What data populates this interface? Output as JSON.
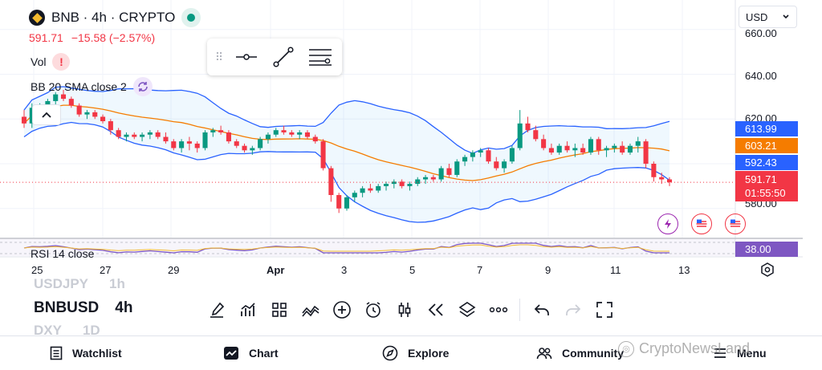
{
  "header": {
    "title": "BNB · 4h · CRYPTO",
    "last_price": "591.71",
    "change": "−15.58 (−2.57%)"
  },
  "indicators": {
    "volume_label": "Vol",
    "bb_label": "BB 20 SMA close 2",
    "rsi_label": "RSI 14 close"
  },
  "currency_selector": {
    "value": "USD"
  },
  "price_axis": {
    "labels": [
      "660.00",
      "640.00",
      "620.00",
      "580.00"
    ]
  },
  "price_tags": {
    "bb_upper": {
      "value": "613.99",
      "color": "#2962ff"
    },
    "bb_basis": {
      "value": "603.21",
      "color": "#f57c00"
    },
    "bb_lower": {
      "value": "592.43",
      "color": "#2962ff"
    },
    "last": {
      "value": "591.71",
      "countdown": "01:55:50",
      "color": "#f23645"
    },
    "rsi": {
      "value": "38.00",
      "color": "#7e57c2"
    }
  },
  "time_axis": {
    "labels": [
      "25",
      "27",
      "29",
      "Apr",
      "3",
      "5",
      "7",
      "9",
      "11",
      "13"
    ]
  },
  "chart_data": {
    "type": "candlestick",
    "symbol": "BNB",
    "interval": "4h",
    "y_range": [
      567,
      666
    ],
    "x_labels": [
      "25",
      "27",
      "29",
      "Apr",
      "3",
      "5",
      "7",
      "9",
      "11",
      "13"
    ],
    "candles_ohlc": [
      [
        621,
        624,
        616,
        618
      ],
      [
        618,
        627,
        616,
        625
      ],
      [
        625,
        627,
        623,
        626
      ],
      [
        626,
        629,
        624,
        628
      ],
      [
        628,
        632,
        626,
        631
      ],
      [
        631,
        633,
        628,
        629
      ],
      [
        629,
        630,
        625,
        626
      ],
      [
        626,
        627,
        621,
        622
      ],
      [
        622,
        624,
        620,
        623
      ],
      [
        623,
        624,
        620,
        621
      ],
      [
        621,
        622,
        618,
        619
      ],
      [
        619,
        620,
        613,
        615
      ],
      [
        615,
        616,
        611,
        612
      ],
      [
        612,
        614,
        610,
        613
      ],
      [
        613,
        614,
        611,
        612
      ],
      [
        612,
        614,
        610,
        613
      ],
      [
        613,
        615,
        611,
        614
      ],
      [
        614,
        615,
        611,
        612
      ],
      [
        612,
        614,
        609,
        610
      ],
      [
        610,
        611,
        606,
        607
      ],
      [
        607,
        611,
        605,
        610
      ],
      [
        610,
        612,
        606,
        609
      ],
      [
        609,
        610,
        605,
        607
      ],
      [
        607,
        615,
        606,
        614
      ],
      [
        614,
        616,
        612,
        615
      ],
      [
        615,
        617,
        613,
        614
      ],
      [
        614,
        615,
        609,
        610
      ],
      [
        610,
        611,
        607,
        608
      ],
      [
        608,
        609,
        605,
        606
      ],
      [
        606,
        608,
        604,
        607
      ],
      [
        607,
        612,
        606,
        611
      ],
      [
        611,
        614,
        609,
        613
      ],
      [
        613,
        616,
        612,
        615
      ],
      [
        615,
        617,
        613,
        614
      ],
      [
        614,
        615,
        612,
        613
      ],
      [
        613,
        615,
        611,
        614
      ],
      [
        614,
        615,
        611,
        612
      ],
      [
        612,
        613,
        609,
        610
      ],
      [
        610,
        611,
        597,
        598
      ],
      [
        598,
        599,
        583,
        586
      ],
      [
        586,
        587,
        578,
        580
      ],
      [
        580,
        586,
        579,
        585
      ],
      [
        585,
        588,
        583,
        587
      ],
      [
        587,
        590,
        585,
        589
      ],
      [
        589,
        591,
        587,
        588
      ],
      [
        588,
        591,
        587,
        590
      ],
      [
        590,
        592,
        588,
        591
      ],
      [
        591,
        593,
        589,
        592
      ],
      [
        592,
        593,
        589,
        590
      ],
      [
        590,
        592,
        588,
        591
      ],
      [
        591,
        594,
        590,
        593
      ],
      [
        593,
        595,
        591,
        594
      ],
      [
        594,
        595,
        592,
        593
      ],
      [
        593,
        599,
        592,
        598
      ],
      [
        598,
        600,
        594,
        595
      ],
      [
        595,
        602,
        594,
        601
      ],
      [
        601,
        604,
        599,
        603
      ],
      [
        603,
        606,
        601,
        605
      ],
      [
        605,
        607,
        603,
        606
      ],
      [
        606,
        607,
        600,
        601
      ],
      [
        601,
        603,
        597,
        598
      ],
      [
        598,
        602,
        596,
        601
      ],
      [
        601,
        608,
        600,
        607
      ],
      [
        607,
        624,
        606,
        618
      ],
      [
        618,
        621,
        614,
        615
      ],
      [
        615,
        617,
        610,
        611
      ],
      [
        611,
        613,
        606,
        607
      ],
      [
        607,
        609,
        604,
        605
      ],
      [
        605,
        609,
        604,
        608
      ],
      [
        608,
        610,
        605,
        606
      ],
      [
        606,
        609,
        603,
        607
      ],
      [
        607,
        609,
        604,
        605
      ],
      [
        605,
        612,
        604,
        611
      ],
      [
        611,
        612,
        604,
        606
      ],
      [
        606,
        608,
        603,
        607
      ],
      [
        607,
        609,
        605,
        608
      ],
      [
        608,
        610,
        604,
        605
      ],
      [
        605,
        609,
        604,
        608
      ],
      [
        608,
        612,
        605,
        610
      ],
      [
        610,
        611,
        598,
        600
      ],
      [
        600,
        601,
        592,
        594
      ],
      [
        594,
        596,
        591,
        593
      ],
      [
        593,
        594,
        590,
        591.71
      ]
    ],
    "bollinger": {
      "period": 20,
      "mult": 2,
      "upper_last": 613.99,
      "basis_last": 603.21,
      "lower_last": 592.43
    },
    "rsi": {
      "period": 14,
      "last": 38.0
    }
  },
  "bottom_panel": {
    "symbols": [
      {
        "name": "USDJPY",
        "interval": "1h"
      },
      {
        "name": "BNBUSD",
        "interval": "4h"
      },
      {
        "name": "DXY",
        "interval": "1D"
      }
    ],
    "tool_icons": [
      "brush-icon",
      "indicators-icon",
      "layouts-icon",
      "patterns-icon",
      "add-icon",
      "alert-icon",
      "candles-icon",
      "replay-icon",
      "layers-icon",
      "more-icon",
      "undo-icon",
      "redo-icon",
      "fullscreen-icon"
    ]
  },
  "nav": {
    "watchlist": "Watchlist",
    "chart": "Chart",
    "explore": "Explore",
    "community": "Community",
    "menu": "Menu"
  },
  "watermark": {
    "text": "CryptoNewsLand"
  }
}
